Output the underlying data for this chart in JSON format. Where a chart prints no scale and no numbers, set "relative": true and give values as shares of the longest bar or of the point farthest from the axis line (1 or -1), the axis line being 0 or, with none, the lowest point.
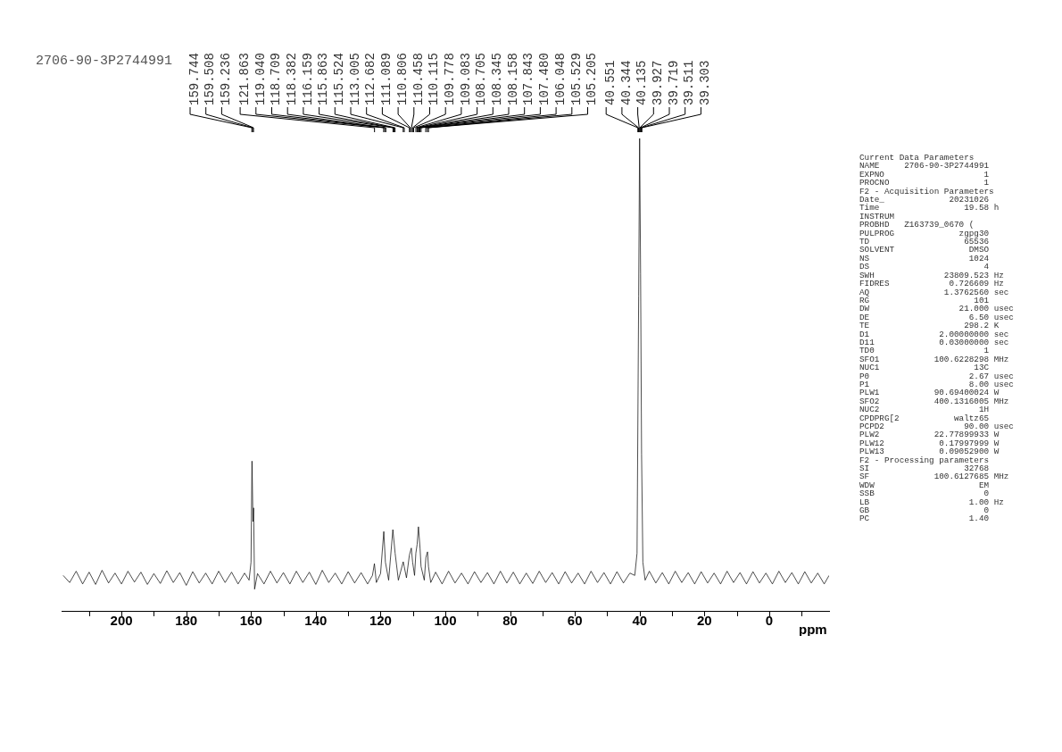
{
  "chart_data": [
    {
      "type": "line",
      "title": "2706-90-3P2744991",
      "xlabel": "ppm",
      "relative": true,
      "legend": false,
      "grid": false,
      "marker": "none",
      "xlim": [
        218.5,
        -18.5
      ],
      "xticks": [
        {
          "value": 210,
          "label": null
        },
        200,
        {
          "value": 190,
          "label": null
        },
        180,
        {
          "value": 170,
          "label": null
        },
        160,
        {
          "value": 150,
          "label": null
        },
        140,
        {
          "value": 130,
          "label": null
        },
        120,
        {
          "value": 110,
          "label": null
        },
        100,
        {
          "value": 90,
          "label": null
        },
        80,
        {
          "value": 70,
          "label": null
        },
        60,
        {
          "value": 50,
          "label": null
        },
        40,
        {
          "value": 30,
          "label": null
        },
        20,
        {
          "value": 10,
          "label": null
        },
        0,
        {
          "value": -10,
          "label": null
        }
      ],
      "series": [
        {
          "color": "#000000",
          "x": [
            218,
            216,
            214,
            212,
            210,
            208,
            206,
            204,
            202,
            200,
            198,
            196,
            194,
            192,
            190,
            188,
            186,
            184,
            182,
            180,
            178,
            176,
            174,
            172,
            170,
            168,
            166,
            164,
            162,
            160.6,
            160.0,
            159.7,
            159.4,
            159.2,
            158.9,
            158,
            156,
            154,
            152,
            150,
            148,
            146,
            144,
            142,
            140,
            138,
            136,
            134,
            132,
            130,
            128,
            126,
            124,
            122.5,
            121.9,
            121.3,
            120.0,
            119.0,
            118.5,
            117.5,
            116.2,
            115.5,
            114.5,
            113.0,
            112.7,
            112.0,
            111.1,
            110.5,
            110.1,
            109.5,
            109.1,
            108.7,
            108.3,
            107.8,
            107.5,
            106.5,
            106.0,
            105.5,
            105.2,
            104.5,
            103,
            101,
            99,
            97,
            95,
            93,
            91,
            89,
            87,
            85,
            83,
            81,
            79,
            77,
            75,
            73,
            71,
            69,
            67,
            65,
            63,
            61,
            59,
            57,
            55,
            53,
            51,
            49,
            47,
            45,
            43,
            41.5,
            40.8,
            40.3,
            40.0,
            39.7,
            39.4,
            39.0,
            38.3,
            37,
            35,
            33,
            31,
            29,
            27,
            25,
            23,
            21,
            19,
            17,
            15,
            13,
            11,
            9,
            7,
            5,
            3,
            1,
            -1,
            -3,
            -5,
            -7,
            -9,
            -11,
            -13,
            -15,
            -17,
            -18.5
          ],
          "values": [
            0.075,
            0.06,
            0.084,
            0.057,
            0.082,
            0.056,
            0.086,
            0.059,
            0.08,
            0.057,
            0.084,
            0.061,
            0.082,
            0.056,
            0.079,
            0.058,
            0.085,
            0.06,
            0.081,
            0.054,
            0.083,
            0.059,
            0.08,
            0.057,
            0.084,
            0.06,
            0.082,
            0.057,
            0.08,
            0.065,
            0.103,
            0.317,
            0.189,
            0.218,
            0.046,
            0.079,
            0.057,
            0.084,
            0.059,
            0.081,
            0.057,
            0.084,
            0.06,
            0.082,
            0.056,
            0.086,
            0.06,
            0.08,
            0.057,
            0.083,
            0.059,
            0.081,
            0.057,
            0.075,
            0.1,
            0.06,
            0.079,
            0.168,
            0.103,
            0.065,
            0.172,
            0.122,
            0.065,
            0.104,
            0.094,
            0.07,
            0.118,
            0.133,
            0.103,
            0.075,
            0.122,
            0.141,
            0.178,
            0.132,
            0.094,
            0.065,
            0.113,
            0.125,
            0.094,
            0.06,
            0.082,
            0.057,
            0.084,
            0.059,
            0.08,
            0.057,
            0.083,
            0.06,
            0.081,
            0.057,
            0.084,
            0.059,
            0.082,
            0.057,
            0.08,
            0.058,
            0.084,
            0.06,
            0.081,
            0.057,
            0.083,
            0.059,
            0.08,
            0.057,
            0.084,
            0.06,
            0.081,
            0.057,
            0.083,
            0.059,
            0.08,
            0.075,
            0.122,
            0.666,
            1,
            0.714,
            0.332,
            0.103,
            0.065,
            0.084,
            0.059,
            0.081,
            0.057,
            0.084,
            0.06,
            0.081,
            0.057,
            0.083,
            0.059,
            0.08,
            0.057,
            0.084,
            0.06,
            0.081,
            0.057,
            0.083,
            0.059,
            0.08,
            0.057,
            0.084,
            0.06,
            0.081,
            0.057,
            0.083,
            0.059,
            0.08,
            0.057,
            0.075
          ]
        }
      ],
      "annotations": [
        {
          "text": "159.744",
          "x": 159.744
        },
        {
          "text": "159.508",
          "x": 159.508
        },
        {
          "text": "159.236",
          "x": 159.236
        },
        {
          "text": "121.863",
          "x": 121.863
        },
        {
          "text": "119.040",
          "x": 119.04
        },
        {
          "text": "118.709",
          "x": 118.709
        },
        {
          "text": "118.382",
          "x": 118.382
        },
        {
          "text": "116.159",
          "x": 116.159
        },
        {
          "text": "115.863",
          "x": 115.863
        },
        {
          "text": "115.524",
          "x": 115.524
        },
        {
          "text": "113.005",
          "x": 113.005
        },
        {
          "text": "112.682",
          "x": 112.682
        },
        {
          "text": "111.089",
          "x": 111.089
        },
        {
          "text": "110.806",
          "x": 110.806
        },
        {
          "text": "110.458",
          "x": 110.458
        },
        {
          "text": "110.115",
          "x": 110.115
        },
        {
          "text": "109.778",
          "x": 109.778
        },
        {
          "text": "109.083",
          "x": 109.083
        },
        {
          "text": "108.705",
          "x": 108.705
        },
        {
          "text": "108.345",
          "x": 108.345
        },
        {
          "text": "108.158",
          "x": 108.158
        },
        {
          "text": "107.843",
          "x": 107.843
        },
        {
          "text": "107.480",
          "x": 107.48
        },
        {
          "text": "106.048",
          "x": 106.048
        },
        {
          "text": "105.529",
          "x": 105.529
        },
        {
          "text": "105.205",
          "x": 105.205
        },
        {
          "text": "40.551",
          "x": 40.551
        },
        {
          "text": "40.344",
          "x": 40.344
        },
        {
          "text": "40.135",
          "x": 40.135
        },
        {
          "text": "39.927",
          "x": 39.927
        },
        {
          "text": "39.719",
          "x": 39.719
        },
        {
          "text": "39.511",
          "x": 39.511
        },
        {
          "text": "39.303",
          "x": 39.303
        }
      ]
    },
    {
      "type": "other",
      "annotations": [
        "Current Data Parameters",
        "NAME     2706-90-3P2744991",
        "EXPNO                    1",
        "PROCNO                   1",
        "F2 - Acquisition Parameters",
        "Date_             20231026",
        "Time                 19.58 h",
        "INSTRUM",
        "PROBHD   Z163739_0670 (",
        "PULPROG             zgpg30",
        "TD                   65536",
        "SOLVENT               DMSO",
        "NS                    1024",
        "DS                       4",
        "SWH              23809.523 Hz",
        "FIDRES            0.726609 Hz",
        "AQ               1.3762560 sec",
        "RG                     101",
        "DW                  21.000 usec",
        "DE                    6.50 usec",
        "TE                   298.2 K",
        "D1              2.00000000 sec",
        "D11             0.03000000 sec",
        "TD0                      1",
        "SFO1           100.6228298 MHz",
        "NUC1                   13C",
        "P0                    2.67 usec",
        "P1                    8.00 usec",
        "PLW1           90.69400024 W",
        "SFO2           400.1316005 MHz",
        "NUC2                    1H",
        "CPDPRG[2           waltz65",
        "PCPD2                90.00 usec",
        "PLW2           22.77899933 W",
        "PLW12           0.17997999 W",
        "PLW13           0.09052900 W",
        "F2 - Processing parameters",
        "SI                   32768",
        "SF             100.6127685 MHz",
        "WDW                     EM",
        "SSB                      0",
        "LB                    1.00 Hz",
        "GB                       0",
        "PC                    1.40"
      ]
    }
  ]
}
